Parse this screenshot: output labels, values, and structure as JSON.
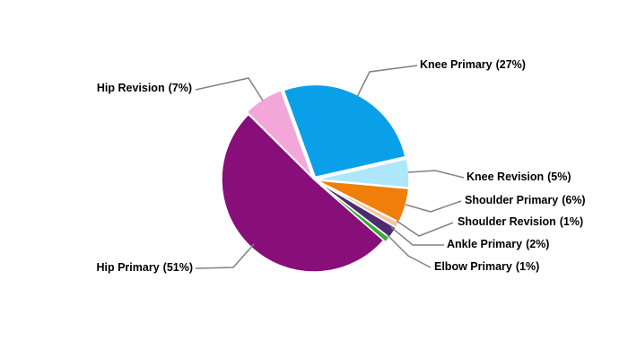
{
  "chart_data": {
    "type": "pie",
    "categories": [
      "Knee Primary",
      "Knee Revision",
      "Shoulder Primary",
      "Shoulder Revision",
      "Ankle Primary",
      "Elbow Primary",
      "Hip Primary",
      "Hip Revision"
    ],
    "values": [
      27,
      5,
      6,
      1,
      2,
      1,
      51,
      7
    ],
    "value_labels": [
      "(27%)",
      "(5%)",
      "(6%)",
      "(1%)",
      "(2%)",
      "(1%)",
      "(51%)",
      "(7%)"
    ],
    "colors": [
      "#0a9fe9",
      "#aee7fb",
      "#f07e0b",
      "#f6c79c",
      "#4c2c6e",
      "#3ba53a",
      "#880e79",
      "#f2a7d8"
    ]
  }
}
